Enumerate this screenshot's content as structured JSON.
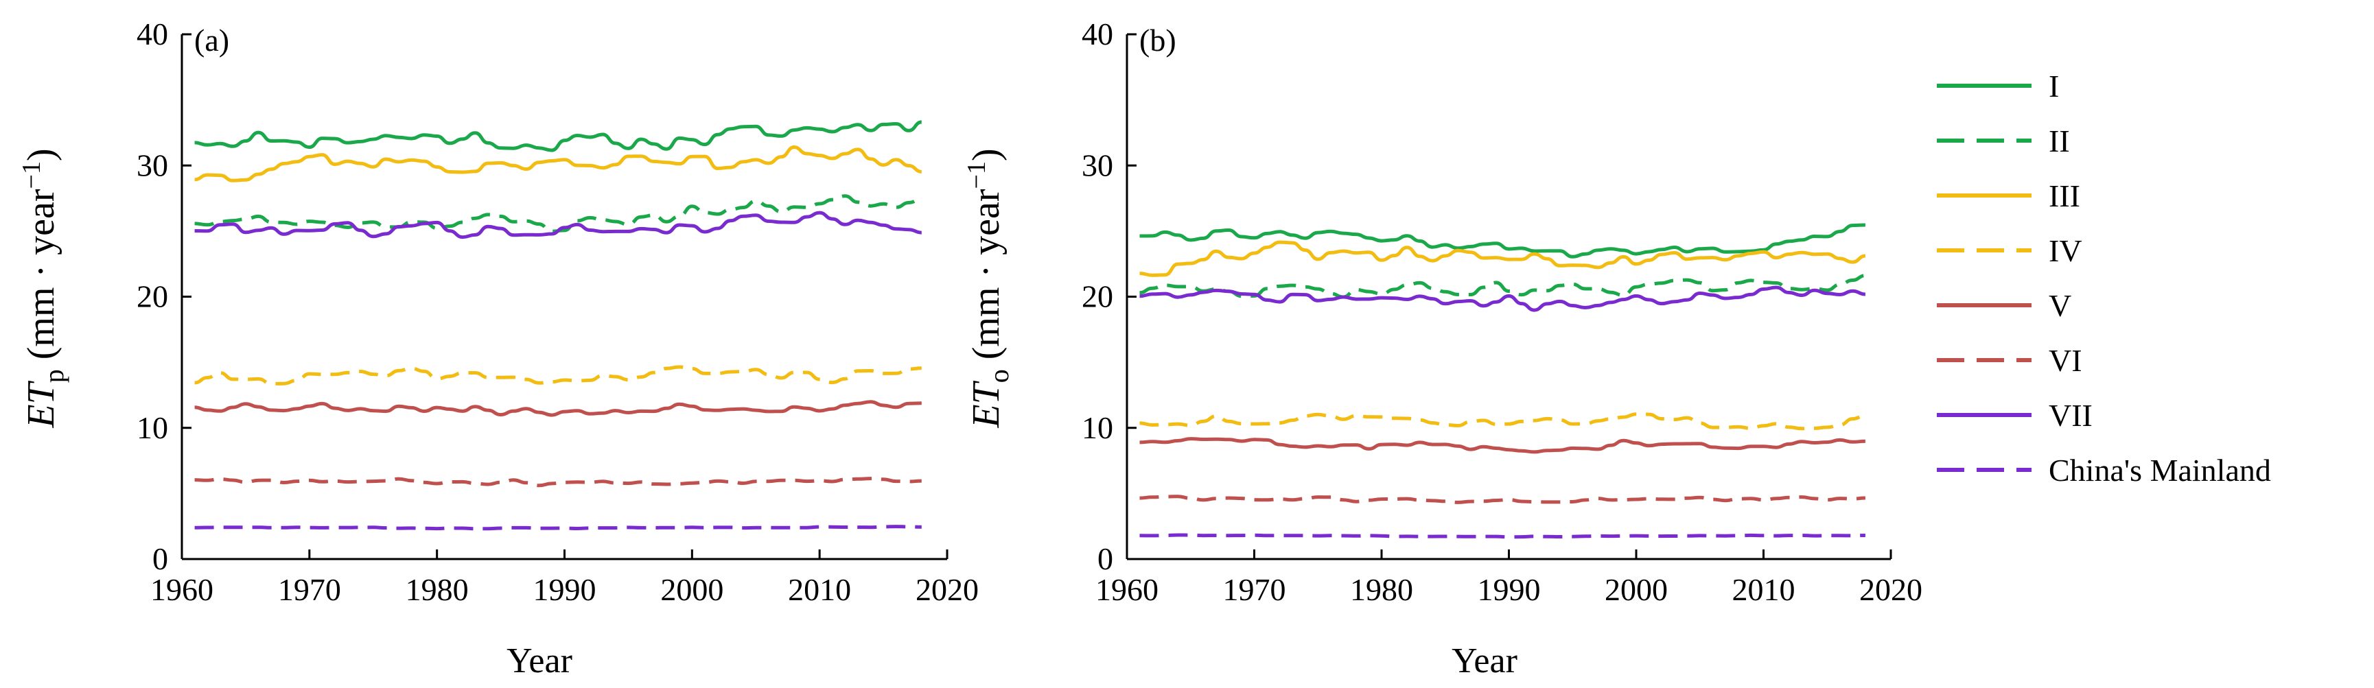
{
  "chart_data": [
    {
      "type": "line",
      "panel_label": "(a)",
      "ylabel_main": "ET",
      "ylabel_sub": "p",
      "ylabel_unit_open": " (mm · year",
      "ylabel_unit_exp": "−1",
      "ylabel_unit_close": ")",
      "xlabel": "Year",
      "xlim": [
        1960,
        2020
      ],
      "ylim": [
        0,
        40
      ],
      "xticks": [
        1960,
        1970,
        1980,
        1990,
        2000,
        2010,
        2020
      ],
      "yticks": [
        0,
        10,
        20,
        30,
        40
      ],
      "series": [
        {
          "name": "I",
          "base": [
            [
              1961,
              32.0
            ],
            [
              1970,
              32.0
            ],
            [
              1980,
              32.2
            ],
            [
              1990,
              31.6
            ],
            [
              2000,
              32.0
            ],
            [
              2010,
              32.8
            ],
            [
              2018,
              33.5
            ]
          ],
          "amp": 0.9,
          "seed": 11
        },
        {
          "name": "II",
          "base": [
            [
              1961,
              25.8
            ],
            [
              1970,
              25.6
            ],
            [
              1980,
              25.8
            ],
            [
              1990,
              25.5
            ],
            [
              2000,
              26.4
            ],
            [
              2010,
              27.2
            ],
            [
              2018,
              27.4
            ]
          ],
          "amp": 0.8,
          "seed": 23
        },
        {
          "name": "III",
          "base": [
            [
              1961,
              29.2
            ],
            [
              1970,
              30.6
            ],
            [
              1980,
              30.0
            ],
            [
              1990,
              30.0
            ],
            [
              2000,
              30.4
            ],
            [
              2010,
              30.8
            ],
            [
              2018,
              30.0
            ]
          ],
          "amp": 1.0,
          "seed": 37
        },
        {
          "name": "IV",
          "base": [
            [
              1961,
              13.6
            ],
            [
              1970,
              13.9
            ],
            [
              1980,
              14.0
            ],
            [
              1990,
              13.6
            ],
            [
              2000,
              14.3
            ],
            [
              2010,
              14.0
            ],
            [
              2018,
              14.2
            ]
          ],
          "amp": 0.6,
          "seed": 41
        },
        {
          "name": "V",
          "base": [
            [
              1961,
              11.7
            ],
            [
              1970,
              11.6
            ],
            [
              1980,
              11.6
            ],
            [
              1990,
              11.1
            ],
            [
              2000,
              11.7
            ],
            [
              2010,
              11.6
            ],
            [
              2018,
              11.9
            ]
          ],
          "amp": 0.5,
          "seed": 53
        },
        {
          "name": "VI",
          "base": [
            [
              1961,
              6.1
            ],
            [
              1970,
              6.0
            ],
            [
              1980,
              5.9
            ],
            [
              1990,
              5.8
            ],
            [
              2000,
              5.9
            ],
            [
              2010,
              6.1
            ],
            [
              2018,
              6.1
            ]
          ],
          "amp": 0.25,
          "seed": 67
        },
        {
          "name": "VII",
          "base": [
            [
              1961,
              25.2
            ],
            [
              1970,
              25.2
            ],
            [
              1980,
              25.2
            ],
            [
              1990,
              25.0
            ],
            [
              2000,
              25.4
            ],
            [
              2010,
              26.2
            ],
            [
              2018,
              25.1
            ]
          ],
          "amp": 0.7,
          "seed": 79
        },
        {
          "name": "China's Mainland",
          "base": [
            [
              1961,
              2.4
            ],
            [
              1970,
              2.4
            ],
            [
              1980,
              2.35
            ],
            [
              1990,
              2.35
            ],
            [
              2000,
              2.4
            ],
            [
              2010,
              2.45
            ],
            [
              2018,
              2.45
            ]
          ],
          "amp": 0.05,
          "seed": 83
        }
      ]
    },
    {
      "type": "line",
      "panel_label": "(b)",
      "ylabel_main": "ET",
      "ylabel_sub": "o",
      "ylabel_unit_open": " (mm · year",
      "ylabel_unit_exp": "−1",
      "ylabel_unit_close": ")",
      "xlabel": "Year",
      "xlim": [
        1960,
        2020
      ],
      "ylim": [
        0,
        40
      ],
      "xticks": [
        1960,
        1970,
        1980,
        1990,
        2000,
        2010,
        2020
      ],
      "yticks": [
        0,
        10,
        20,
        30,
        40
      ],
      "series": [
        {
          "name": "I",
          "base": [
            [
              1961,
              24.8
            ],
            [
              1970,
              24.8
            ],
            [
              1980,
              24.6
            ],
            [
              1990,
              23.6
            ],
            [
              2000,
              23.2
            ],
            [
              2010,
              24.0
            ],
            [
              2018,
              25.0
            ]
          ],
          "amp": 0.6,
          "seed": 13
        },
        {
          "name": "II",
          "base": [
            [
              1961,
              20.5
            ],
            [
              1970,
              20.4
            ],
            [
              1980,
              20.6
            ],
            [
              1990,
              20.5
            ],
            [
              2000,
              20.8
            ],
            [
              2010,
              20.6
            ],
            [
              2018,
              21.4
            ]
          ],
          "amp": 0.7,
          "seed": 29
        },
        {
          "name": "III",
          "base": [
            [
              1961,
              22.0
            ],
            [
              1970,
              23.6
            ],
            [
              1980,
              23.0
            ],
            [
              1990,
              23.0
            ],
            [
              2000,
              22.6
            ],
            [
              2010,
              23.4
            ],
            [
              2018,
              22.8
            ]
          ],
          "amp": 0.8,
          "seed": 31
        },
        {
          "name": "IV",
          "base": [
            [
              1961,
              10.5
            ],
            [
              1970,
              10.6
            ],
            [
              1980,
              10.8
            ],
            [
              1990,
              10.3
            ],
            [
              2000,
              10.8
            ],
            [
              2010,
              10.2
            ],
            [
              2018,
              10.6
            ]
          ],
          "amp": 0.5,
          "seed": 43
        },
        {
          "name": "V",
          "base": [
            [
              1961,
              9.0
            ],
            [
              1970,
              8.9
            ],
            [
              1980,
              8.7
            ],
            [
              1990,
              8.4
            ],
            [
              2000,
              8.8
            ],
            [
              2010,
              8.5
            ],
            [
              2018,
              8.9
            ]
          ],
          "amp": 0.4,
          "seed": 59
        },
        {
          "name": "VI",
          "base": [
            [
              1961,
              4.7
            ],
            [
              1970,
              4.6
            ],
            [
              1980,
              4.5
            ],
            [
              1990,
              4.4
            ],
            [
              2000,
              4.5
            ],
            [
              2010,
              4.6
            ],
            [
              2018,
              4.6
            ]
          ],
          "amp": 0.2,
          "seed": 61
        },
        {
          "name": "VII",
          "base": [
            [
              1961,
              20.2
            ],
            [
              1970,
              20.0
            ],
            [
              1980,
              19.8
            ],
            [
              1990,
              19.5
            ],
            [
              2000,
              19.6
            ],
            [
              2010,
              20.5
            ],
            [
              2018,
              19.9
            ]
          ],
          "amp": 0.6,
          "seed": 71
        },
        {
          "name": "China's Mainland",
          "base": [
            [
              1961,
              1.8
            ],
            [
              1970,
              1.8
            ],
            [
              1980,
              1.75
            ],
            [
              1990,
              1.7
            ],
            [
              2000,
              1.75
            ],
            [
              2010,
              1.8
            ],
            [
              2018,
              1.8
            ]
          ],
          "amp": 0.04,
          "seed": 89
        }
      ]
    }
  ],
  "legend": [
    {
      "label": "I",
      "color": "#1aa84a",
      "dash": "solid"
    },
    {
      "label": "II",
      "color": "#1aa84a",
      "dash": "dashed"
    },
    {
      "label": "III",
      "color": "#f2bc12",
      "dash": "solid"
    },
    {
      "label": "IV",
      "color": "#f2bc12",
      "dash": "dashed"
    },
    {
      "label": "V",
      "color": "#c0504d",
      "dash": "solid"
    },
    {
      "label": "VI",
      "color": "#c0504d",
      "dash": "dashed"
    },
    {
      "label": "VII",
      "color": "#7a2bd0",
      "dash": "solid"
    },
    {
      "label": "China's Mainland",
      "color": "#7a2bd0",
      "dash": "dashed"
    }
  ]
}
